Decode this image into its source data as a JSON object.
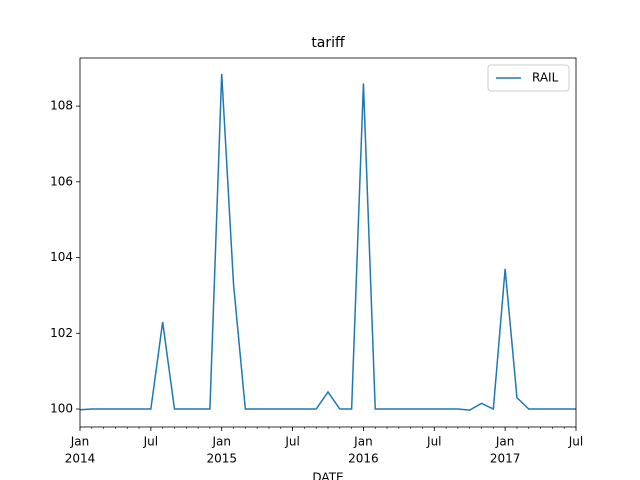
{
  "chart_data": {
    "type": "line",
    "title": "tariff",
    "xlabel": "DATE",
    "x": [
      "2014-01",
      "2014-02",
      "2014-03",
      "2014-04",
      "2014-05",
      "2014-06",
      "2014-07",
      "2014-08",
      "2014-09",
      "2014-10",
      "2014-11",
      "2014-12",
      "2015-01",
      "2015-02",
      "2015-03",
      "2015-04",
      "2015-05",
      "2015-06",
      "2015-07",
      "2015-08",
      "2015-09",
      "2015-10",
      "2015-11",
      "2015-12",
      "2016-01",
      "2016-02",
      "2016-03",
      "2016-04",
      "2016-05",
      "2016-06",
      "2016-07",
      "2016-08",
      "2016-09",
      "2016-10",
      "2016-11",
      "2016-12",
      "2017-01",
      "2017-02",
      "2017-03",
      "2017-04",
      "2017-05",
      "2017-06",
      "2017-07"
    ],
    "series": [
      {
        "name": "RAIL",
        "color": "#1f77b4",
        "values": [
          99.98,
          100,
          100,
          100,
          100,
          100,
          100,
          102.3,
          100,
          100,
          100,
          100,
          108.85,
          103.3,
          100,
          100,
          100,
          100,
          100,
          100,
          100,
          100.45,
          100,
          100,
          108.6,
          100,
          100,
          100,
          100,
          100,
          100,
          100,
          100,
          99.97,
          100.15,
          100,
          103.7,
          100.3,
          100,
          100,
          100,
          100,
          100
        ]
      }
    ],
    "xlim": [
      "2014-01",
      "2017-07"
    ],
    "xticks": [
      {
        "value": "2014-01",
        "label": "Jan",
        "year": "2014"
      },
      {
        "value": "2014-07",
        "label": "Jul"
      },
      {
        "value": "2015-01",
        "label": "Jan",
        "year": "2015"
      },
      {
        "value": "2015-07",
        "label": "Jul"
      },
      {
        "value": "2016-01",
        "label": "Jan",
        "year": "2016"
      },
      {
        "value": "2016-07",
        "label": "Jul"
      },
      {
        "value": "2017-01",
        "label": "Jan",
        "year": "2017"
      },
      {
        "value": "2017-07",
        "label": "Jul"
      }
    ],
    "ylim": [
      99.525,
      109.27
    ],
    "yticks": [
      100,
      102,
      104,
      106,
      108
    ],
    "legend": "upper right"
  }
}
